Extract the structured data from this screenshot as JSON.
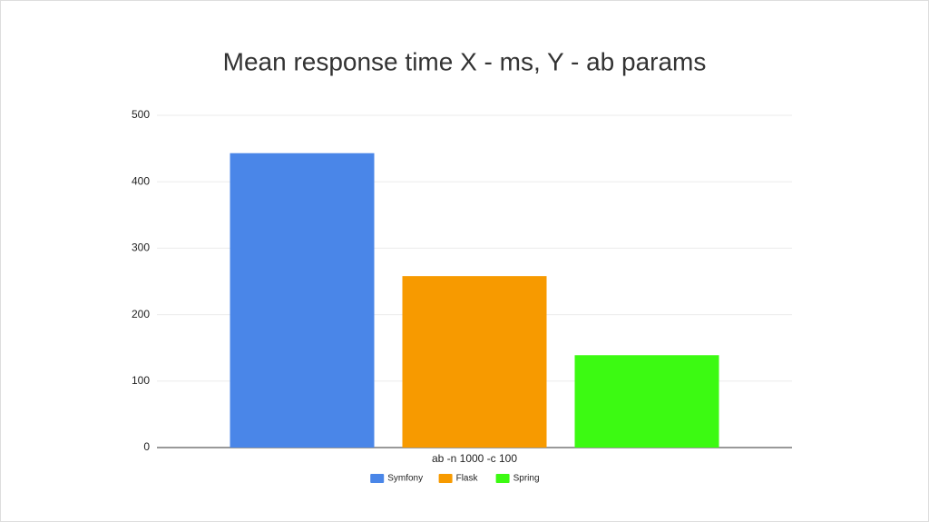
{
  "chart_data": {
    "type": "bar",
    "title": "Mean response time X - ms, Y - ab params",
    "categories": [
      "ab -n 1000 -c 100"
    ],
    "series": [
      {
        "name": "Symfony",
        "color": "#4a86e8",
        "values": [
          443
        ]
      },
      {
        "name": "Flask",
        "color": "#f79a00",
        "values": [
          258
        ]
      },
      {
        "name": "Spring",
        "color": "#3cfa12",
        "values": [
          139
        ]
      }
    ],
    "ylim": [
      0,
      500
    ],
    "yticks": [
      0,
      100,
      200,
      300,
      400,
      500
    ],
    "grid": true,
    "legend": "bottom"
  }
}
